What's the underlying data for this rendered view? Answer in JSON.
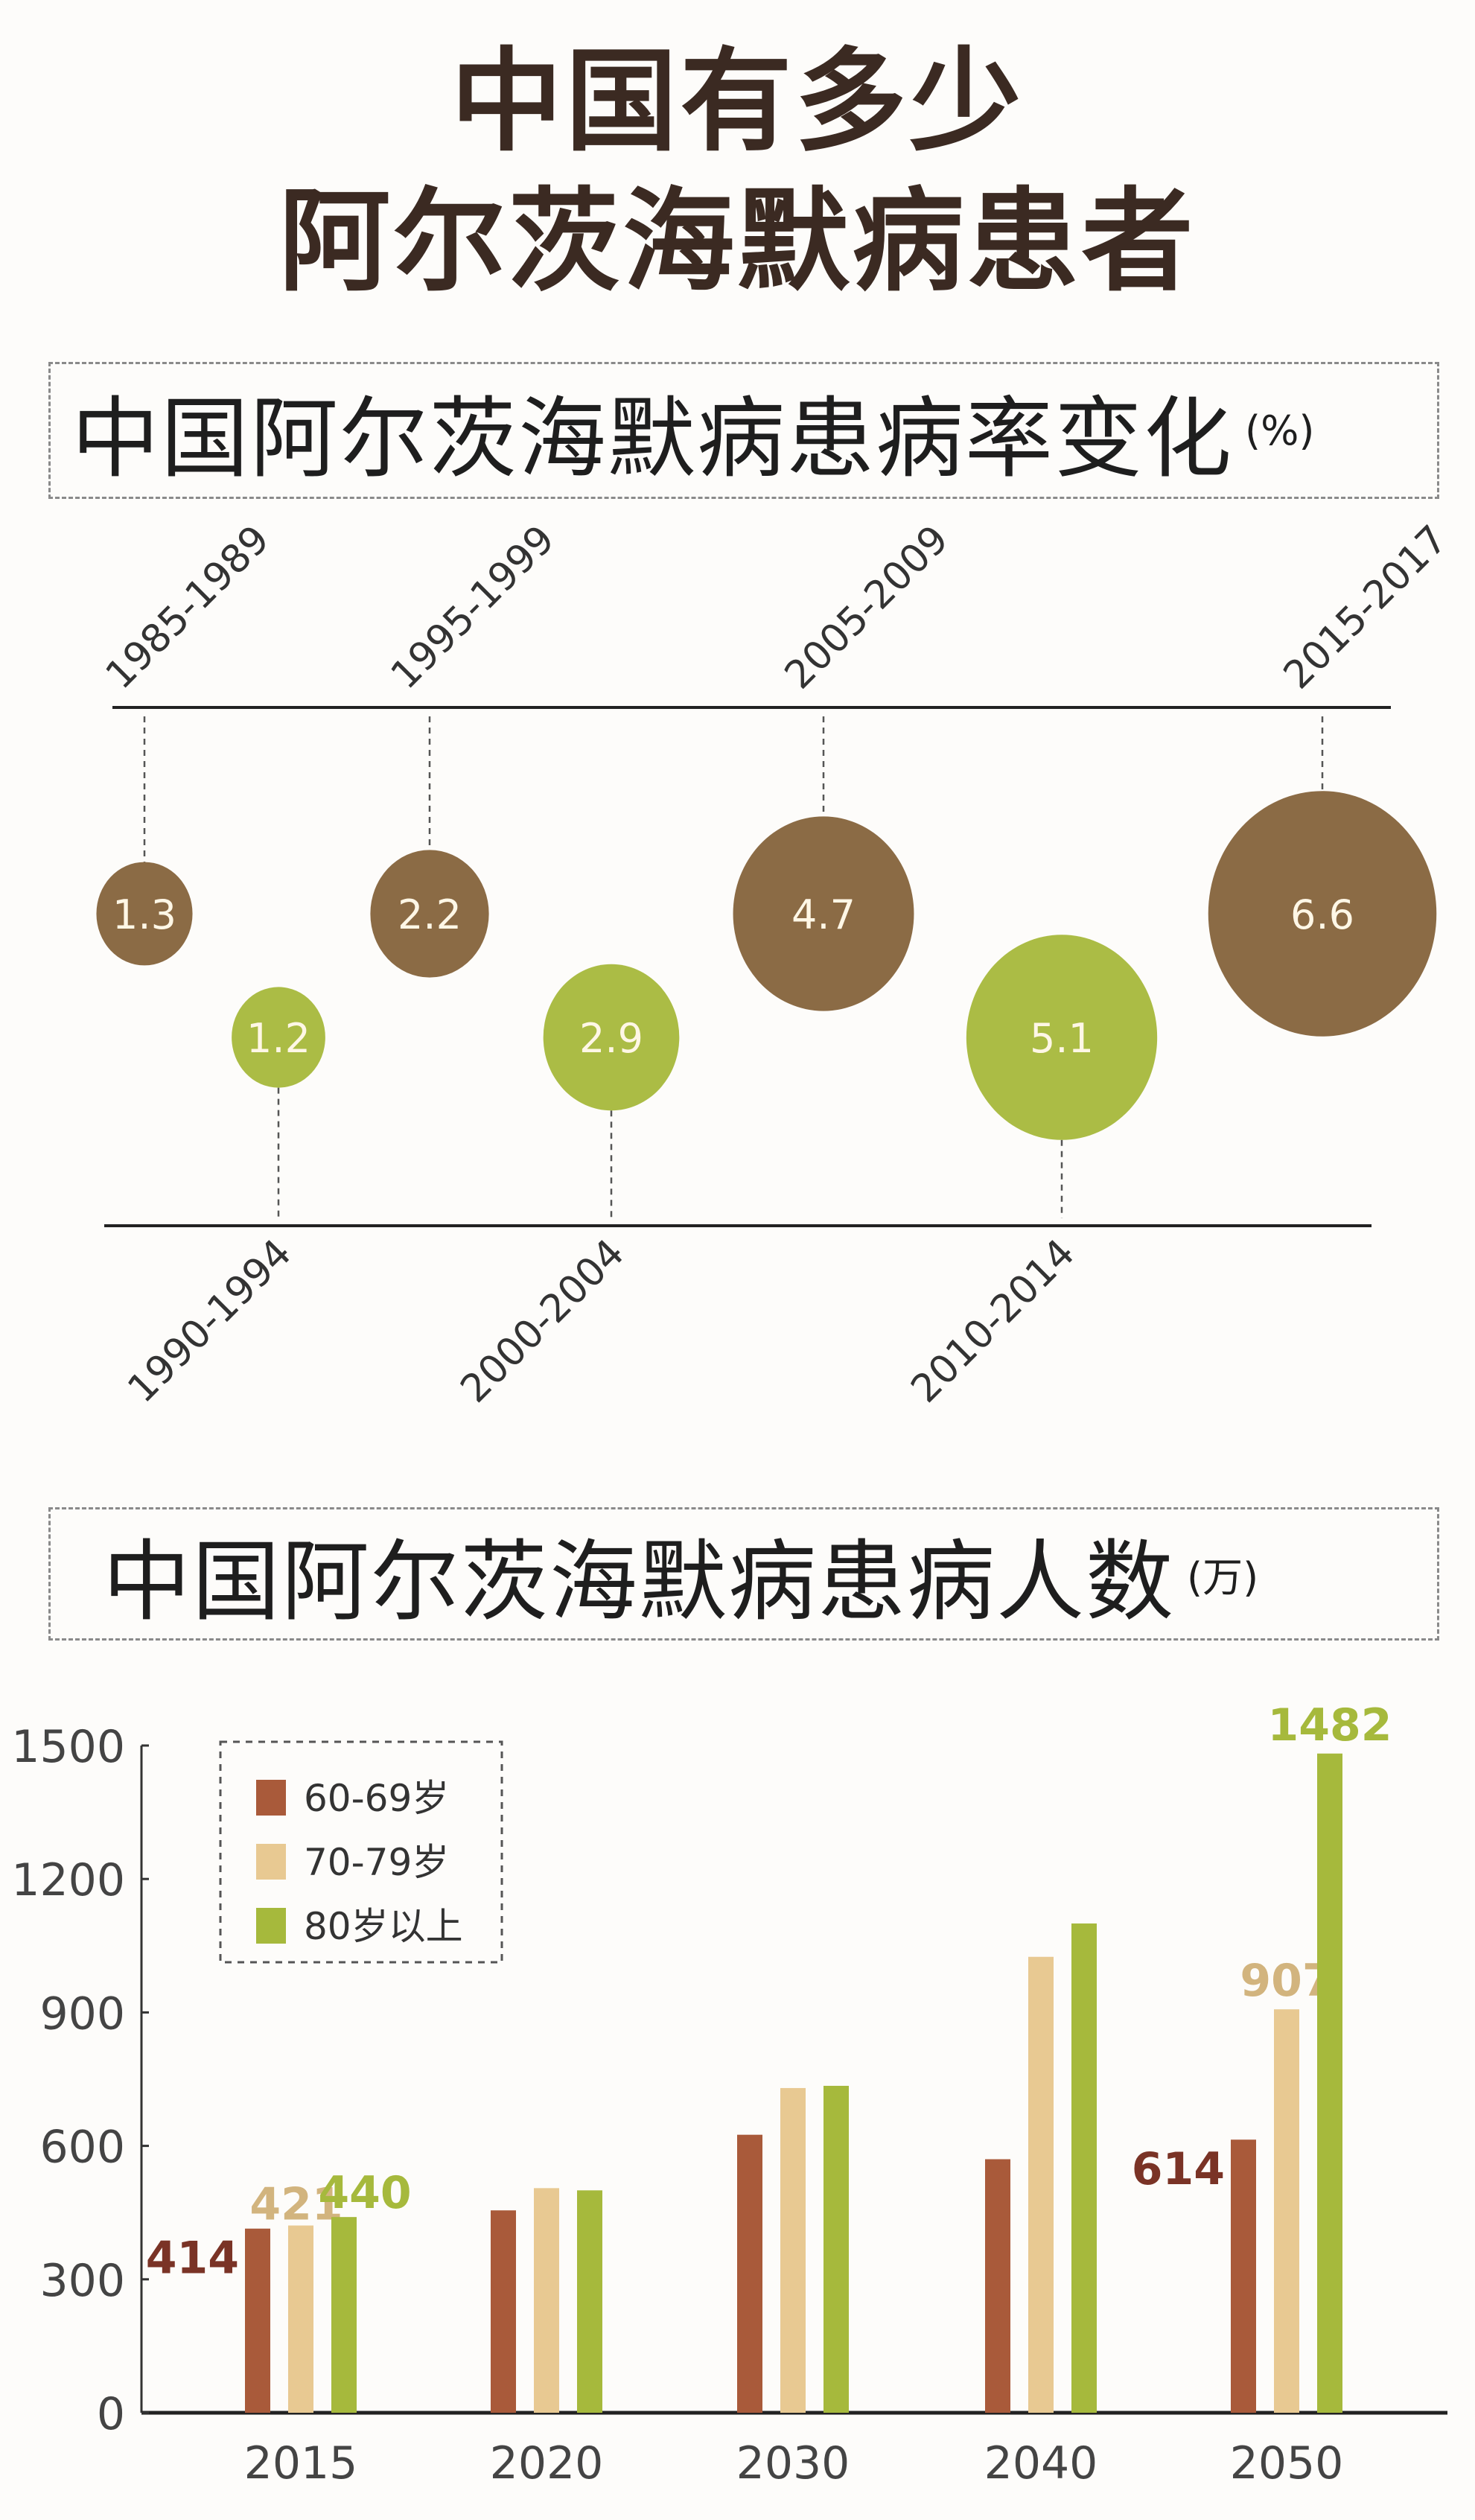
{
  "header": {
    "title_line1": "中国有多少",
    "title_line2": "阿尔茨海默病患者"
  },
  "section1": {
    "title": "中国阿尔茨海默病患病率变化",
    "unit": "(%)"
  },
  "section2": {
    "title": "中国阿尔茨海默病患病人数",
    "unit": "(万)"
  },
  "colors": {
    "brown": "#8b6b45",
    "green": "#abbc45",
    "c60": "#a95a3a",
    "c70": "#e8c992",
    "c80": "#a6b93c"
  },
  "chart_data": [
    {
      "type": "bubble-timeline",
      "title": "中国阿尔茨海默病患病率变化",
      "unit": "%",
      "categories": [
        "1985-1989",
        "1990-1994",
        "1995-1999",
        "2000-2004",
        "2005-2009",
        "2010-2014",
        "2015-2017"
      ],
      "values": [
        1.3,
        1.2,
        2.2,
        2.9,
        4.7,
        5.1,
        6.6
      ],
      "labels": [
        "1.3",
        "1.2",
        "2.2",
        "2.9",
        "4.7",
        "5.1",
        "6.6"
      ]
    },
    {
      "type": "bar",
      "title": "中国阿尔茨海默病患病人数",
      "unit": "万",
      "categories": [
        "2015",
        "2020",
        "2030",
        "2040",
        "2050"
      ],
      "ylim": [
        0,
        1500
      ],
      "yticks": [
        "0",
        "300",
        "600",
        "900",
        "1200",
        "1500"
      ],
      "legend_position": "top-left",
      "series": [
        {
          "name": "60-69岁",
          "values": [
            414,
            455,
            625,
            570,
            614
          ],
          "labels": [
            "414",
            null,
            null,
            null,
            "614"
          ]
        },
        {
          "name": "70-79岁",
          "values": [
            421,
            505,
            730,
            1025,
            907
          ],
          "labels": [
            "421",
            null,
            null,
            null,
            "907"
          ]
        },
        {
          "name": "80岁以上",
          "values": [
            440,
            500,
            735,
            1100,
            1482
          ],
          "labels": [
            "440",
            null,
            null,
            null,
            "1482"
          ]
        }
      ]
    }
  ]
}
